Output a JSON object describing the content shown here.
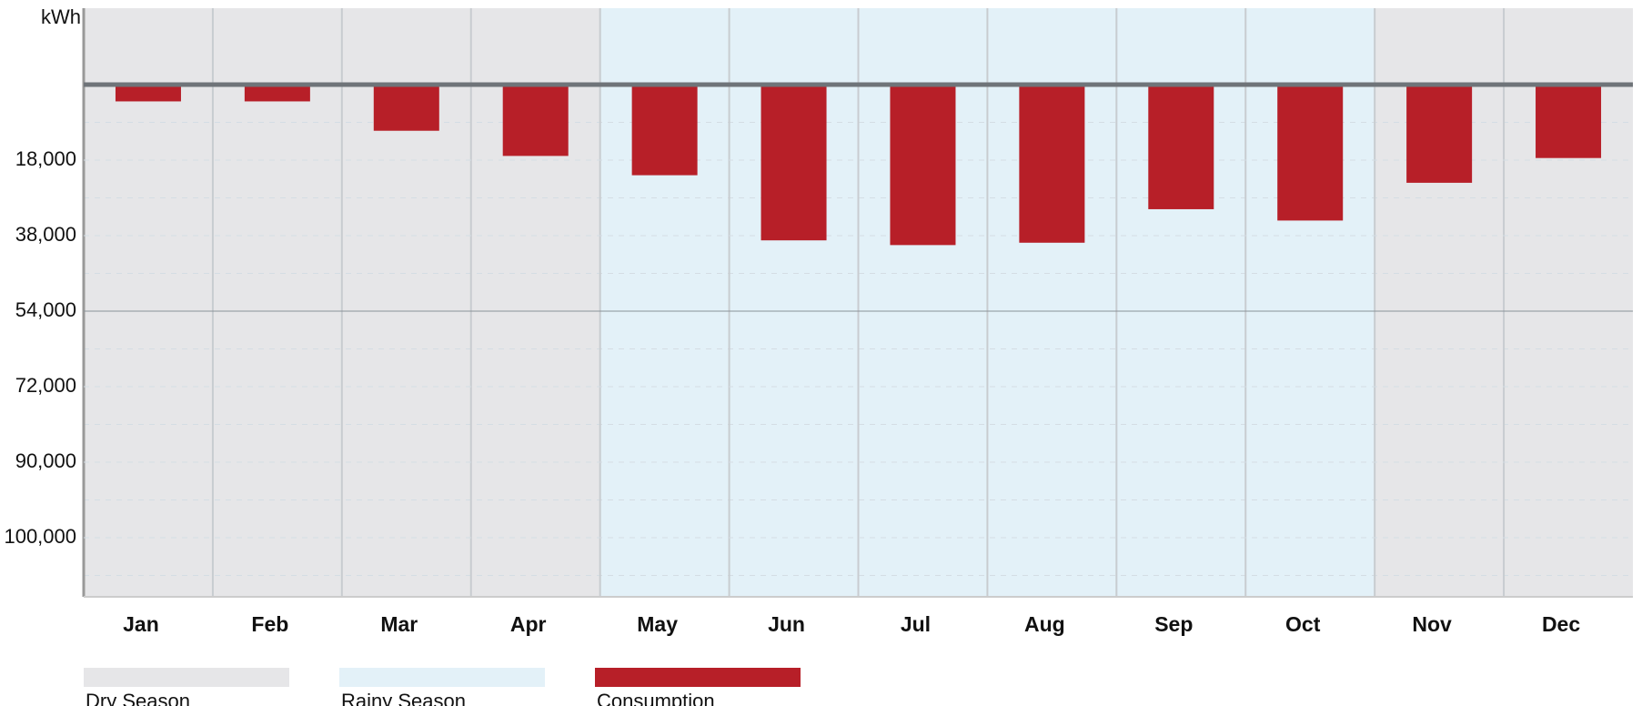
{
  "chart_data": {
    "type": "bar",
    "y_unit": "kWh",
    "categories": [
      "Jan",
      "Feb",
      "Mar",
      "Apr",
      "May",
      "Jun",
      "Jul",
      "Aug",
      "Sep",
      "Oct",
      "Nov",
      "Dec"
    ],
    "series": [
      {
        "name": "Consumption",
        "color": "#b71f28",
        "values": [
          4000,
          4000,
          11000,
          17000,
          22000,
          39000,
          40000,
          39500,
          31000,
          34000,
          24000,
          17500
        ]
      }
    ],
    "seasons": [
      {
        "name": "Dry Season",
        "color": "#e6e6e8"
      },
      {
        "name": "Rainy Season",
        "color": "#e3f1f8"
      }
    ],
    "category_season": [
      0,
      0,
      0,
      0,
      1,
      1,
      1,
      1,
      1,
      1,
      0,
      0
    ],
    "yticks": [
      {
        "value": 18000,
        "label": "18,000"
      },
      {
        "value": 38000,
        "label": "38,000"
      },
      {
        "value": 54000,
        "label": "54,000"
      },
      {
        "value": 72000,
        "label": "72,000"
      },
      {
        "value": 90000,
        "label": "90,000"
      },
      {
        "value": 100000,
        "label": "100,000"
      }
    ],
    "y_inverted": true,
    "grid": true
  }
}
